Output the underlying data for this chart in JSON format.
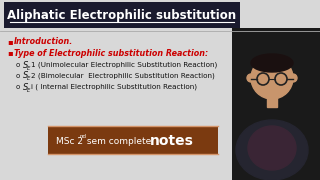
{
  "bg_color": "#d8d8d8",
  "title": "Aliphatic Electrophilic substitution",
  "title_bg": "#1a1a2e",
  "title_color": "#ffffff",
  "bullet1": "Introduction.",
  "bullet2": "Type of Electrophilic substitution Reaction:",
  "sub1_rest": " (Unimolecular Electrophilic Substitution Reaction)",
  "sub2_rest": " (Bimolecular  Electrophilic Substitution Reaction)",
  "sub3_rest": " ( Internal Electrophilic Substitution Reaction)",
  "banner_bg": "#7B3A10",
  "banner_color": "#ffffff",
  "bullet_color": "#cc0000",
  "separator_color": "#aaaaaa",
  "person_bg": "#1a1a1a",
  "skin_color": "#c8956c",
  "body_color": "#2a2a3a"
}
